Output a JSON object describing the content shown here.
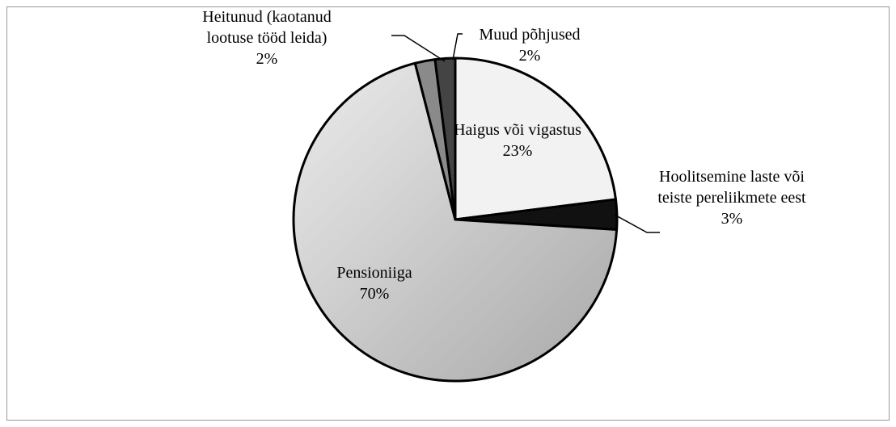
{
  "chart_data": {
    "type": "pie",
    "categories": [
      "Haigus või vigastus",
      "Hoolitsemine laste või teiste pereliikmete eest",
      "Pensioniiga",
      "Heitunud (kaotanud lootuse tööd leida)",
      "Muud põhjused"
    ],
    "values": [
      23,
      3,
      70,
      2,
      2
    ],
    "value_labels": [
      "23%",
      "3%",
      "70%",
      "2%",
      "2%"
    ],
    "colors": [
      "#f2f2f2",
      "#111111",
      "#cfcfcf",
      "#8a8a8a",
      "#444444"
    ]
  }
}
